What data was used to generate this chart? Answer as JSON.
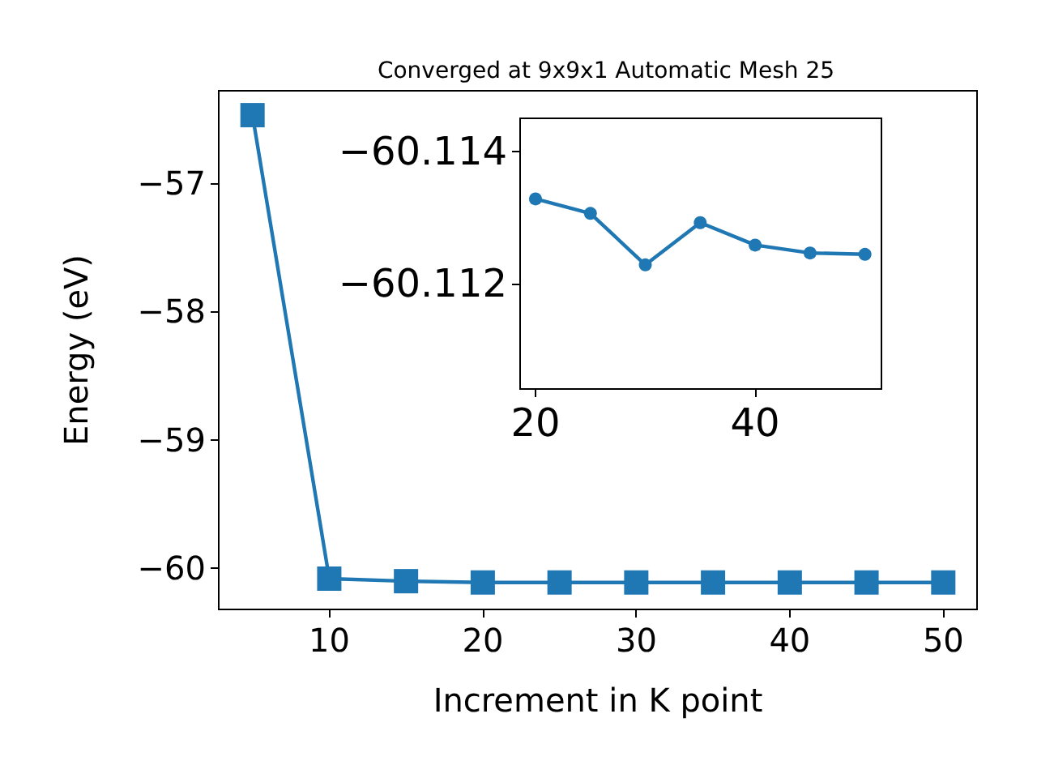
{
  "chart_data": [
    {
      "type": "line",
      "title": "Converged at 9x9x1 Automatic Mesh 25",
      "xlabel": "Increment in K point",
      "ylabel": "Energy (eV)",
      "x": [
        5,
        10,
        15,
        20,
        25,
        30,
        35,
        40,
        45,
        50
      ],
      "series": [
        {
          "color": "#1f77b4",
          "values": [
            -56.47,
            -60.08,
            -60.1,
            -60.11,
            -60.11,
            -60.11,
            -60.11,
            -60.11,
            -60.11,
            -60.11
          ]
        }
      ],
      "xlim": [
        2.8,
        52.2
      ],
      "xticks": [
        10,
        20,
        30,
        40,
        50
      ],
      "ylim": [
        -60.32,
        -56.28
      ],
      "yticks": [
        {
          "value": -60,
          "label": "−60"
        },
        {
          "value": -59,
          "label": "−59"
        },
        {
          "value": -58,
          "label": "−58"
        },
        {
          "value": -57,
          "label": "−57"
        }
      ],
      "grid": false,
      "marker": "square",
      "line_style": "solid"
    },
    {
      "type": "line",
      "x": [
        20,
        25,
        30,
        35,
        40,
        45,
        50
      ],
      "series": [
        {
          "color": "#1f77b4",
          "values": [
            -60.11328,
            -60.11306,
            -60.11228,
            -60.11292,
            -60.11258,
            -60.11246,
            -60.11244
          ]
        }
      ],
      "xlim": [
        18.6,
        51.5
      ],
      "xticks": [
        20,
        40
      ],
      "ylim": [
        -60.1104,
        -60.1145
      ],
      "yticks": [
        {
          "value": -60.114,
          "label": "−60.114"
        },
        {
          "value": -60.112,
          "label": "−60.112"
        }
      ],
      "grid": false,
      "marker": "circle",
      "line_style": "solid"
    }
  ]
}
